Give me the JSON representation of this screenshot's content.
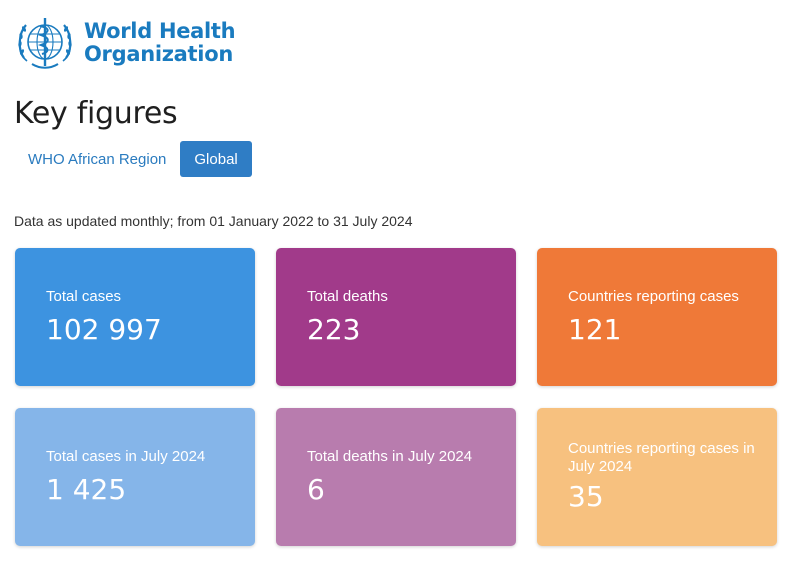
{
  "logo": {
    "line1": "World Health",
    "line2": "Organization",
    "brand_color": "#1a7bbf",
    "icon": "who-emblem-icon"
  },
  "page_title": "Key figures",
  "tabs": [
    {
      "label": "WHO African Region",
      "active": false
    },
    {
      "label": "Global",
      "active": true
    }
  ],
  "subtitle": "Data as updated monthly; from 01 January 2022 to 31 July 2024",
  "cards": [
    {
      "label": "Total cases",
      "value": "102 997",
      "color": "#3d93e0"
    },
    {
      "label": "Total deaths",
      "value": "223",
      "color": "#a13a8a"
    },
    {
      "label": "Countries reporting cases",
      "value": "121",
      "color": "#ef7938"
    },
    {
      "label": "Total cases in July 2024",
      "value": "1 425",
      "color": "#85b5e9"
    },
    {
      "label": "Total deaths in July 2024",
      "value": "6",
      "color": "#b87cae"
    },
    {
      "label": "Countries reporting cases in July 2024",
      "value": "35",
      "color": "#f7c17f"
    }
  ]
}
